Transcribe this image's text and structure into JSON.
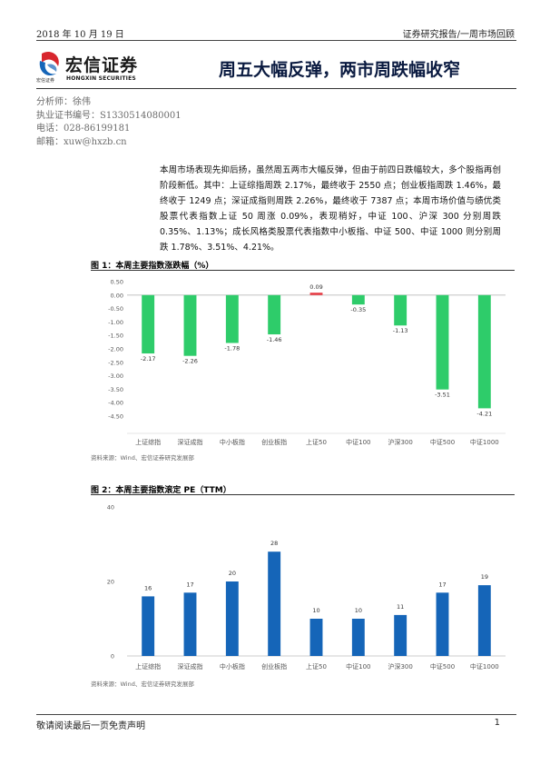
{
  "header": {
    "date": "2018 年 10 月 19 日",
    "report_type": "证券研究报告/一周市场回顾"
  },
  "logo": {
    "name_cn": "宏信证券",
    "sub_cn": "宏信证券",
    "name_en": "HONGXIN SECURITIES"
  },
  "title": "周五大幅反弹，两市周跌幅收窄",
  "analyst": {
    "name": "分析师：徐伟",
    "cert": "执业证书编号：S1330514080001",
    "phone": "电话：028-86199181",
    "email": "邮箱：xuw@hxzb.cn"
  },
  "summary": "本周市场表现先抑后扬，虽然周五两市大幅反弹，但由于前四日跌幅较大，多个股指再创阶段新低。其中：上证综指周跌 2.17%，最终收于 2550 点；创业板指周跌 1.46%，最终收于 1249 点；深证成指则周跌 2.26%，最终收于 7387 点；本周市场价值与绩优类股票代表指数上证 50 周涨 0.09%，表现稍好，中证 100、沪深 300 分别周跌 0.35%、1.13%；成长风格类股票代表指数中小板指、中证 500、中证 1000 则分别周跌 1.78%、3.51%、4.21%。",
  "figure1": {
    "title": "图 1：本周主要指数涨跌幅（%）",
    "source": "资料来源：Wind、宏信证券研究发展部"
  },
  "figure2": {
    "title": "图 2：本周主要指数滚定 PE（TTM）",
    "source": "资料来源：Wind、宏信证券研究发展部"
  },
  "chart_data": [
    {
      "type": "bar",
      "title": "本周主要指数涨跌幅（%）",
      "categories": [
        "上证综指",
        "深证成指",
        "中小板指",
        "创业板指",
        "上证50",
        "中证100",
        "沪深300",
        "中证500",
        "中证1000"
      ],
      "values": [
        -2.17,
        -2.26,
        -1.78,
        -1.46,
        0.09,
        -0.35,
        -1.13,
        -3.51,
        -4.21
      ],
      "data_labels": [
        "-2.17",
        "-2.26",
        "-1.78",
        "-1.46",
        "0.09",
        "-0.35",
        "-1.13",
        "-3.51",
        "-4.21"
      ],
      "ylim": [
        -4.5,
        0.5
      ],
      "yticks": [
        0.5,
        0.0,
        -0.5,
        -1.0,
        -1.5,
        -2.0,
        -2.5,
        -3.0,
        -3.5,
        -4.0,
        -4.5
      ],
      "ytick_labels": [
        "0.50",
        "0.00",
        "-0.50",
        "-1.00",
        "-1.50",
        "-2.00",
        "-2.50",
        "-3.00",
        "-3.50",
        "-4.00",
        "-4.50"
      ],
      "colors": {
        "positive": "#e8414a",
        "negative": "#2ecc6a"
      },
      "grid": false,
      "legend": "none"
    },
    {
      "type": "bar",
      "title": "本周主要指数滚定 PE（TTM）",
      "categories": [
        "上证综指",
        "深证成指",
        "中小板指",
        "创业板指",
        "上证50",
        "中证100",
        "沪深300",
        "中证500",
        "中证1000"
      ],
      "values": [
        16,
        17,
        20,
        28,
        10,
        10,
        11,
        17,
        19
      ],
      "data_labels": [
        "16",
        "17",
        "20",
        "28",
        "10",
        "10",
        "11",
        "17",
        "19"
      ],
      "ylim": [
        0,
        40
      ],
      "yticks": [
        0,
        20,
        40
      ],
      "ytick_labels": [
        "0",
        "20",
        "40"
      ],
      "colors": {
        "bar": "#1565b8"
      },
      "grid": false,
      "legend": "none"
    }
  ],
  "footer": {
    "disclaimer": "敬请阅读最后一页免责声明",
    "page": "1"
  }
}
